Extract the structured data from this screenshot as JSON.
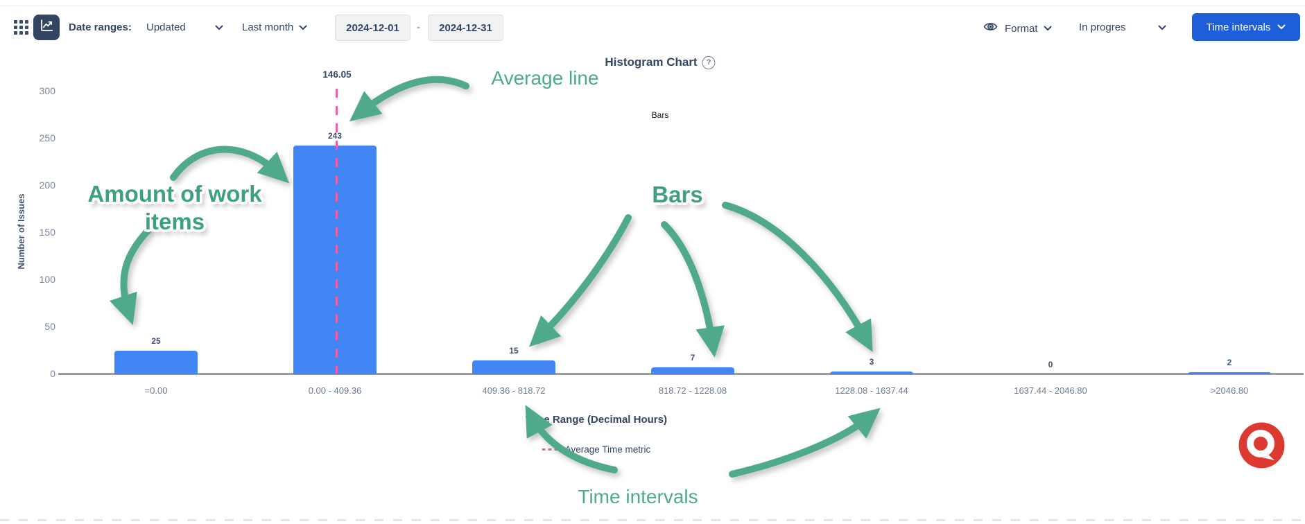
{
  "toolbar": {
    "date_ranges_label": "Date ranges:",
    "field_dropdown": "Updated",
    "period_dropdown": "Last month",
    "date_from": "2024-12-01",
    "date_separator": "-",
    "date_to": "2024-12-31",
    "format_label": "Format",
    "status_dropdown": "In progres",
    "time_intervals_button": "Time intervals"
  },
  "chart": {
    "title": "Histogram Chart",
    "help_glyph": "?",
    "series_label": "Bars",
    "average_label": "146.05",
    "y_axis_label": "Number of Issues",
    "x_axis_label": "Time Range (Decimal Hours)",
    "legend_label": "Average Time metric"
  },
  "chart_data": {
    "type": "bar",
    "title": "Histogram Chart",
    "categories": [
      "=0.00",
      "0.00 - 409.36",
      "409.36 - 818.72",
      "818.72 - 1228.08",
      "1228.08 - 1637.44",
      "1637.44 - 2046.80",
      ">2046.80"
    ],
    "values": [
      25,
      243,
      15,
      7,
      3,
      0,
      2
    ],
    "xlabel": "Time Range (Decimal Hours)",
    "ylabel": "Number of Issues",
    "ylim": [
      0,
      300
    ],
    "yticks": [
      0,
      50,
      100,
      150,
      200,
      250,
      300
    ],
    "grid": false,
    "legend_position": "bottom",
    "series_name": "Bars",
    "average_value": 146.05,
    "average_line_color": "#ef5fa7",
    "bar_color": "#4285f4"
  },
  "annotations": {
    "average_line": "Average line",
    "amount_line1": "Amount of work",
    "amount_line2": "items",
    "bars": "Bars",
    "time_intervals": "Time intervals",
    "arrow_color": "#4fa98c"
  },
  "colors": {
    "bar_blue": "#4285f4",
    "average_pink": "#ef5fa7",
    "annotation_green": "#4fa98c",
    "primary_button_blue": "#1e5ed9",
    "navy_text": "#344563",
    "logo_red": "#dc3a30"
  }
}
